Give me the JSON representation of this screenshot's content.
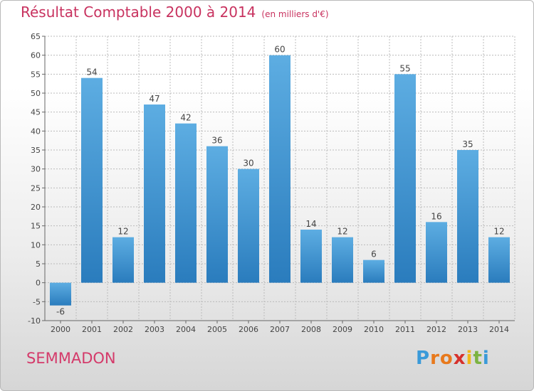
{
  "header": {
    "title": "Résultat Comptable 2000 à 2014",
    "subtitle": "(en milliers d'€)"
  },
  "footer": {
    "commune": "SEMMADON"
  },
  "logo": {
    "letters": [
      "P",
      "r",
      "o",
      "x",
      "i",
      "t",
      "i"
    ],
    "colors": [
      "#3a9ad9",
      "#e8791c",
      "#e8791c",
      "#d6312c",
      "#f0b81a",
      "#7cb342",
      "#3a9ad9"
    ]
  },
  "colors": {
    "bar_top": "#5dade2",
    "bar_bottom": "#2a7cbd",
    "grid": "#bbbbbb",
    "axis": "#666666"
  },
  "chart_data": {
    "type": "bar",
    "title": "Résultat Comptable 2000 à 2014",
    "xlabel": "",
    "ylabel": "(en milliers d'€)",
    "categories": [
      "2000",
      "2001",
      "2002",
      "2003",
      "2004",
      "2005",
      "2006",
      "2007",
      "2008",
      "2009",
      "2010",
      "2011",
      "2012",
      "2013",
      "2014"
    ],
    "values": [
      -6,
      54,
      12,
      47,
      42,
      36,
      30,
      60,
      14,
      12,
      6,
      55,
      16,
      35,
      12
    ],
    "ylim": [
      -10,
      65
    ],
    "yticks": [
      -10,
      -5,
      0,
      5,
      10,
      15,
      20,
      25,
      30,
      35,
      40,
      45,
      50,
      55,
      60,
      65
    ],
    "grid": true,
    "legend": "none"
  }
}
